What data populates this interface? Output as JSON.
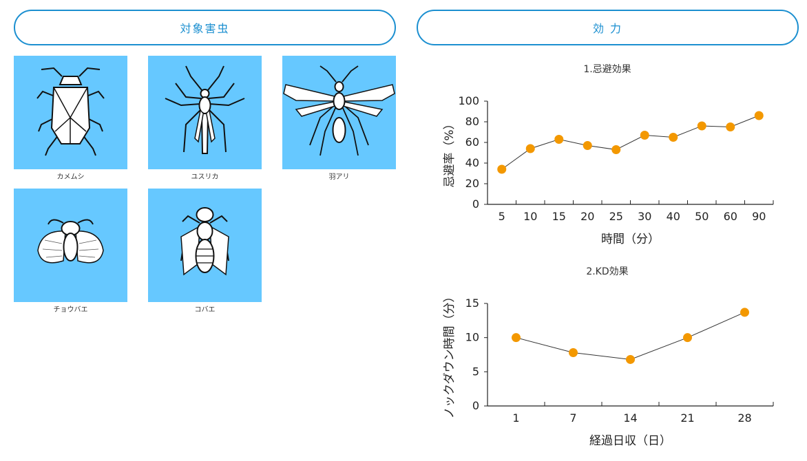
{
  "left_panel": {
    "title": "対象害虫",
    "insects": [
      {
        "name": "カメムシ",
        "icon": "stink-bug-icon"
      },
      {
        "name": "ユスリカ",
        "icon": "midge-icon"
      },
      {
        "name": "羽アリ",
        "icon": "winged-ant-icon"
      },
      {
        "name": "チョウバエ",
        "icon": "moth-fly-icon"
      },
      {
        "name": "コバエ",
        "icon": "small-fly-icon"
      }
    ],
    "tile_color": "#66c8ff"
  },
  "right_panel": {
    "title": "効 力"
  },
  "accent_color": "#1b8fd0",
  "chart_data": [
    {
      "type": "line",
      "title": "1.忌避効果",
      "xlabel": "時間（分）",
      "ylabel": "忌避率（%）",
      "categories": [
        "5",
        "10",
        "15",
        "20",
        "25",
        "30",
        "40",
        "50",
        "60",
        "90"
      ],
      "values": [
        34,
        54,
        63,
        57,
        53,
        67,
        65,
        76,
        75,
        86
      ],
      "ylim": [
        0,
        100
      ],
      "yticks": [
        0,
        20,
        40,
        60,
        80,
        100
      ],
      "marker_color": "#f39800",
      "line_color": "#333333",
      "grid": false
    },
    {
      "type": "line",
      "title": "2.KD効果",
      "xlabel": "経過日収（日）",
      "ylabel": "ノックダウン時間（分）",
      "categories": [
        "1",
        "7",
        "14",
        "21",
        "28"
      ],
      "values": [
        10,
        7.8,
        6.8,
        10,
        13.7
      ],
      "ylim": [
        0,
        15
      ],
      "yticks": [
        0,
        5,
        10,
        15
      ],
      "marker_color": "#f39800",
      "line_color": "#333333",
      "grid": false
    }
  ]
}
